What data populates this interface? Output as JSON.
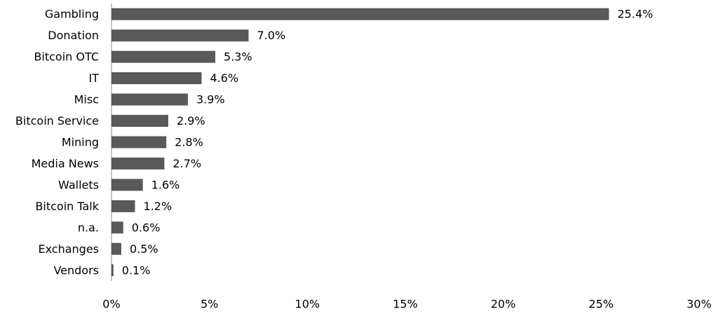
{
  "chart_data": {
    "type": "hbar",
    "categories": [
      "Gambling",
      "Donation",
      "Bitcoin OTC",
      "IT",
      "Misc",
      "Bitcoin Service",
      "Mining",
      "Media News",
      "Wallets",
      "Bitcoin Talk",
      "n.a.",
      "Exchanges",
      "Vendors"
    ],
    "values": [
      25.4,
      7.0,
      5.3,
      4.6,
      3.9,
      2.9,
      2.8,
      2.7,
      1.6,
      1.2,
      0.6,
      0.5,
      0.1
    ],
    "value_labels": [
      "25.4%",
      "7.0%",
      "5.3%",
      "4.6%",
      "3.9%",
      "2.9%",
      "2.8%",
      "2.7%",
      "1.6%",
      "1.2%",
      "0.6%",
      "0.5%",
      "0.1%"
    ],
    "color": "#595959",
    "xlim": [
      0,
      30
    ],
    "xticks": [
      {
        "value": 0,
        "label": "0%"
      },
      {
        "value": 5,
        "label": "5%"
      },
      {
        "value": 10,
        "label": "10%"
      },
      {
        "value": 15,
        "label": "15%"
      },
      {
        "value": 20,
        "label": "20%"
      },
      {
        "value": 25,
        "label": "25%"
      },
      {
        "value": 30,
        "label": "30%"
      }
    ],
    "grid": false
  }
}
